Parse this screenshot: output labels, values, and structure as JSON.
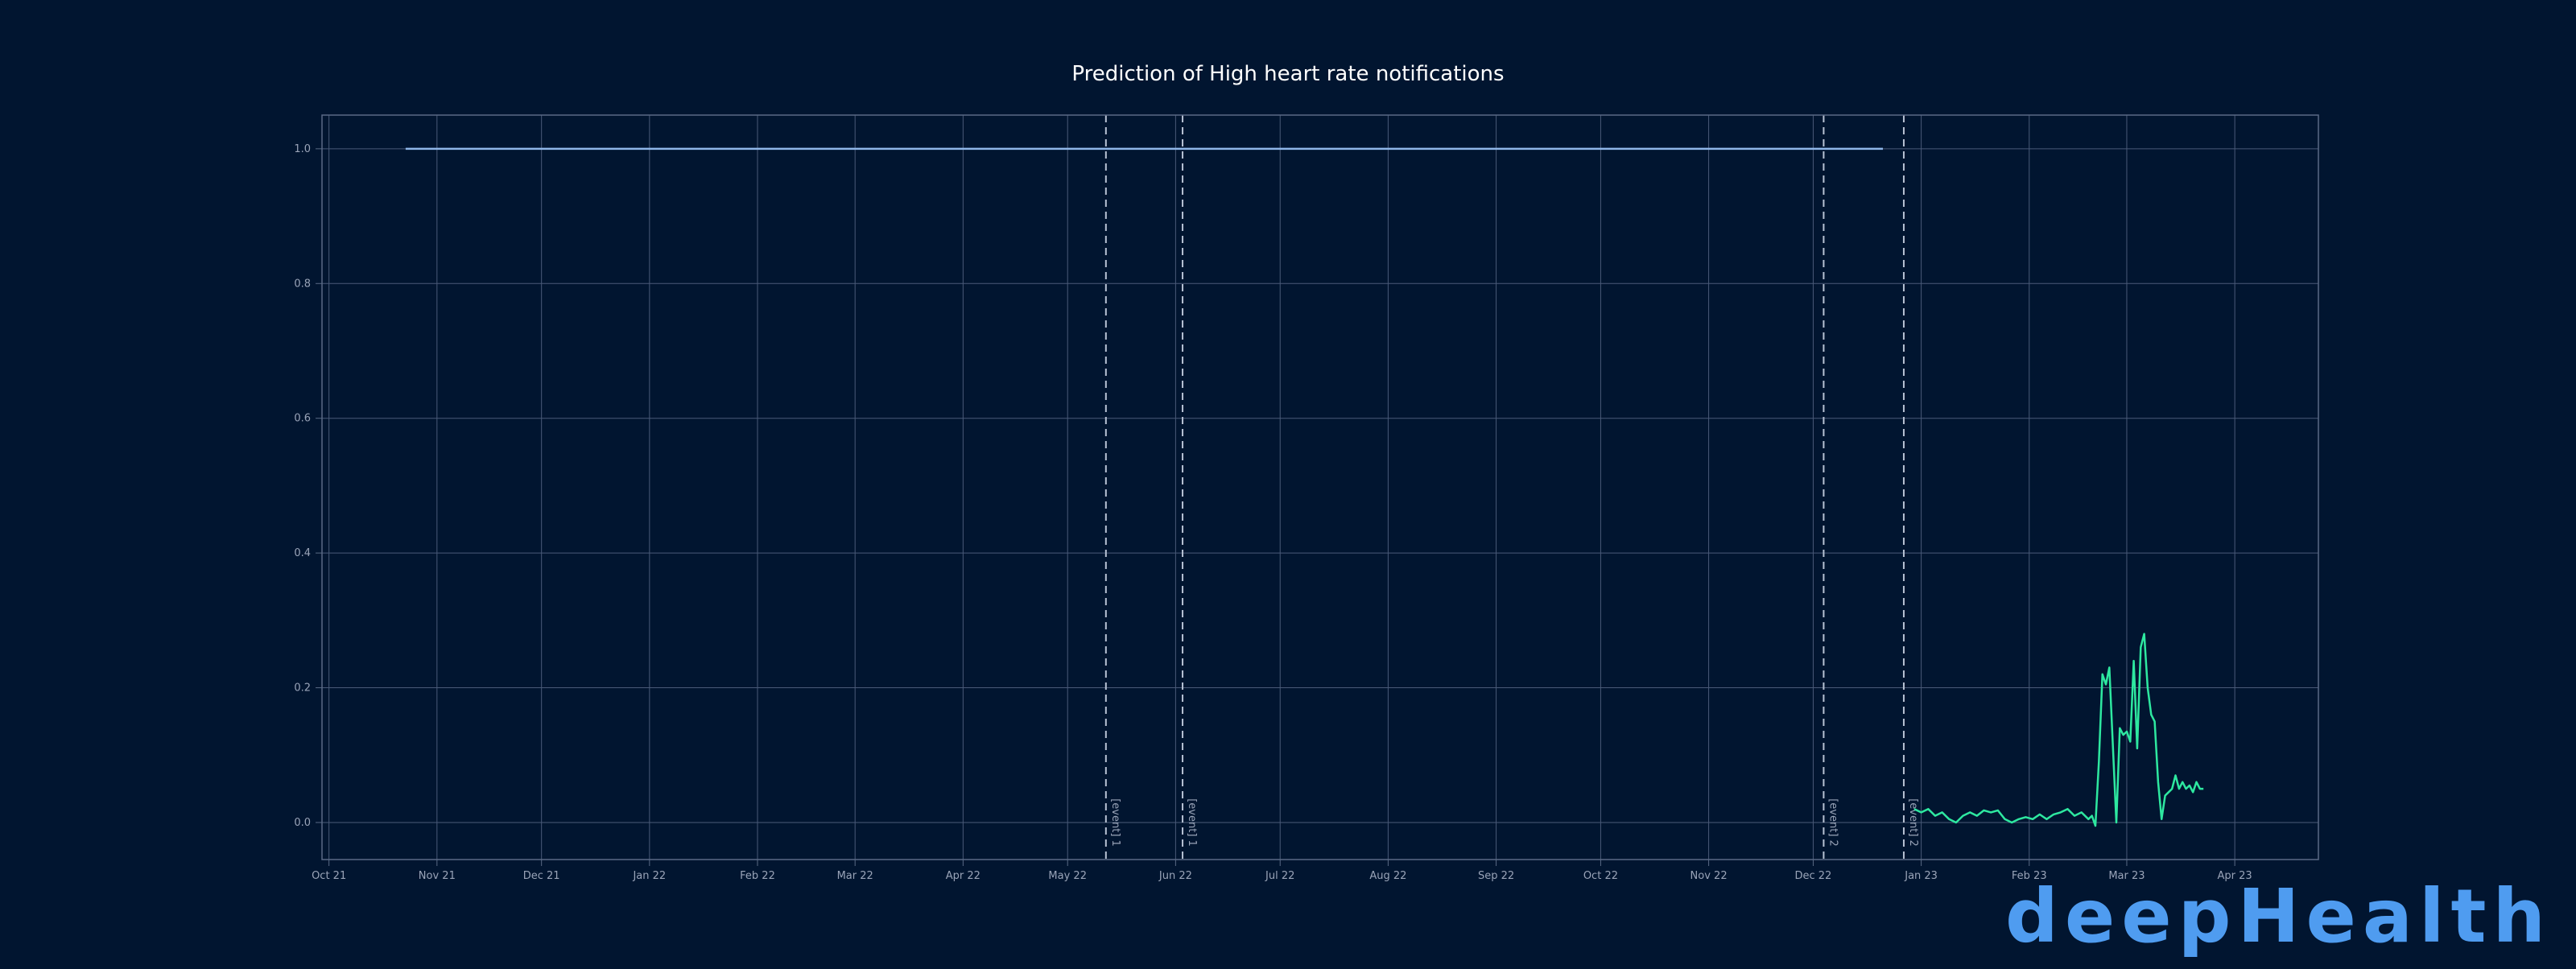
{
  "chart_data": {
    "type": "line",
    "title": "Prediction of High heart rate notifications",
    "xlabel": "",
    "ylabel": "",
    "x_ticks": [
      "Oct 21",
      "Nov 21",
      "Dec 21",
      "Jan 22",
      "Feb 22",
      "Mar 22",
      "Apr 22",
      "May 22",
      "Jun 22",
      "Jul 22",
      "Aug 22",
      "Sep 22",
      "Oct 22",
      "Nov 22",
      "Dec 22",
      "Jan 23",
      "Feb 23",
      "Mar 23",
      "Apr 23"
    ],
    "y_ticks": [
      "0.0",
      "0.2",
      "0.4",
      "0.6",
      "0.8",
      "1.0"
    ],
    "xlim": [
      "2021-09-29",
      "2023-04-25"
    ],
    "ylim": [
      -0.055,
      1.05
    ],
    "grid": true,
    "events": [
      {
        "label": "[event] 1",
        "date": "2022-05-12"
      },
      {
        "label": "[event] 1",
        "date": "2022-06-03"
      },
      {
        "label": "[event] 2",
        "date": "2022-12-04"
      },
      {
        "label": "[event] 2",
        "date": "2022-12-27"
      }
    ],
    "series": [
      {
        "color": "#8fb6e8",
        "x": [
          "2021-10-23",
          "2022-12-21"
        ],
        "y": [
          1.0,
          1.0
        ]
      },
      {
        "color": "#2ee8a0",
        "x": [
          "2022-12-30",
          "2023-01-01",
          "2023-01-03",
          "2023-01-05",
          "2023-01-07",
          "2023-01-09",
          "2023-01-11",
          "2023-01-13",
          "2023-01-15",
          "2023-01-17",
          "2023-01-19",
          "2023-01-21",
          "2023-01-23",
          "2023-01-25",
          "2023-01-27",
          "2023-01-29",
          "2023-01-31",
          "2023-02-02",
          "2023-02-04",
          "2023-02-06",
          "2023-02-08",
          "2023-02-10",
          "2023-02-12",
          "2023-02-14",
          "2023-02-16",
          "2023-02-18",
          "2023-02-19",
          "2023-02-20",
          "2023-02-21",
          "2023-02-22",
          "2023-02-23",
          "2023-02-24",
          "2023-02-26",
          "2023-02-27",
          "2023-02-28",
          "2023-03-01",
          "2023-03-02",
          "2023-03-03",
          "2023-03-04",
          "2023-03-05",
          "2023-03-06",
          "2023-03-07",
          "2023-03-08",
          "2023-03-09",
          "2023-03-10",
          "2023-03-11",
          "2023-03-12",
          "2023-03-13",
          "2023-03-14",
          "2023-03-15",
          "2023-03-16",
          "2023-03-17",
          "2023-03-18",
          "2023-03-19",
          "2023-03-20",
          "2023-03-21",
          "2023-03-22",
          "2023-03-23"
        ],
        "y": [
          0.02,
          0.015,
          0.02,
          0.01,
          0.015,
          0.005,
          0.0,
          0.01,
          0.015,
          0.01,
          0.018,
          0.015,
          0.018,
          0.005,
          0.0,
          0.005,
          0.008,
          0.005,
          0.012,
          0.005,
          0.012,
          0.015,
          0.02,
          0.01,
          0.015,
          0.005,
          0.01,
          -0.005,
          0.09,
          0.22,
          0.205,
          0.23,
          0.0,
          0.14,
          0.13,
          0.135,
          0.12,
          0.24,
          0.11,
          0.26,
          0.28,
          0.2,
          0.16,
          0.15,
          0.06,
          0.005,
          0.04,
          0.045,
          0.05,
          0.07,
          0.05,
          0.06,
          0.05,
          0.055,
          0.045,
          0.06,
          0.05,
          0.05
        ]
      }
    ]
  },
  "branding": {
    "logo_text": "deepHealth",
    "logo_color": "#4f9cf0"
  }
}
